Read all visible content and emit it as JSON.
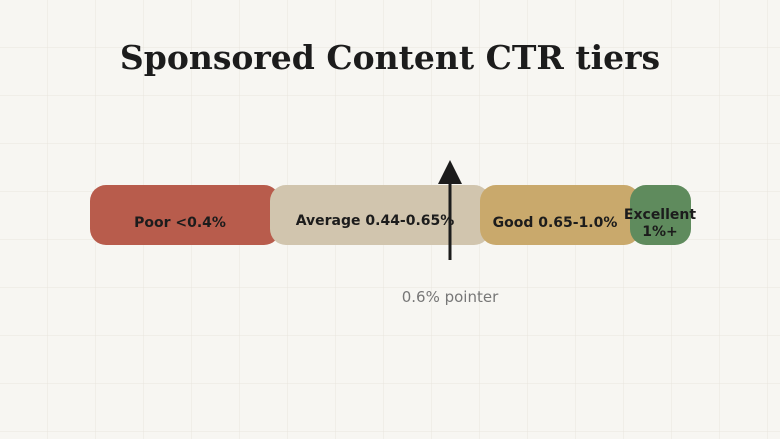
{
  "title": "Sponsored Content CTR tiers",
  "tiers": [
    {
      "label": "Poor <0.4%"
    },
    {
      "label": "Average 0.44-0.65%"
    },
    {
      "label": "Good 0.65-1.0%"
    },
    {
      "label_lines": [
        "Excellent",
        "1%+"
      ]
    }
  ],
  "pointer": {
    "label": "0.6% pointer"
  }
}
